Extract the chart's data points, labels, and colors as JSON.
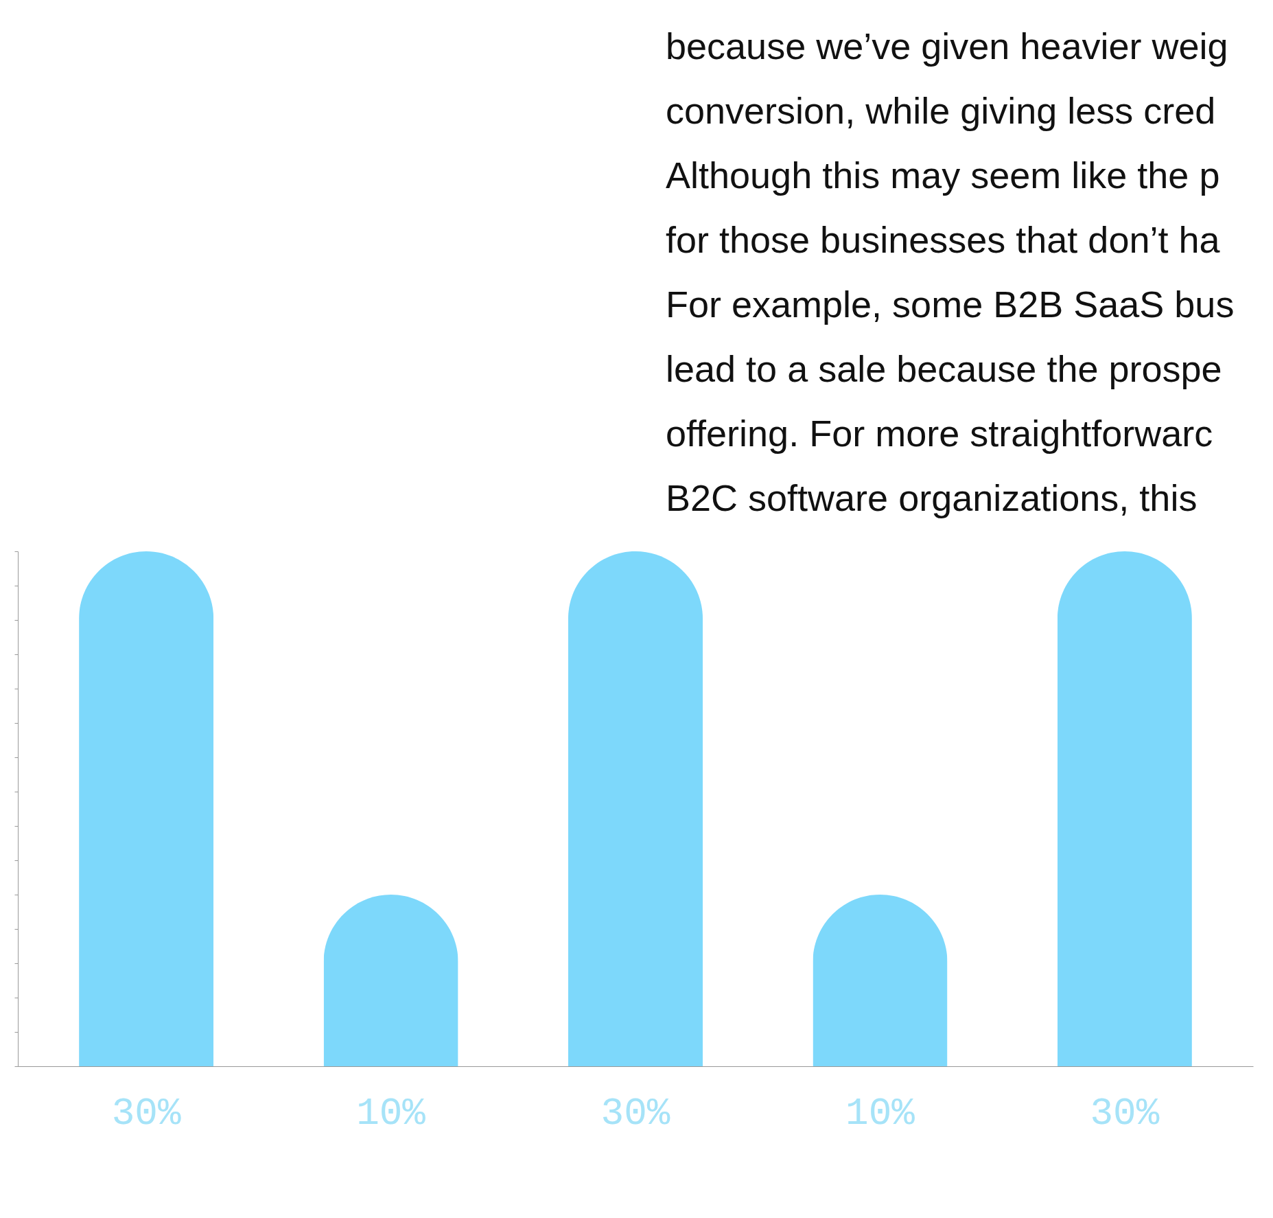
{
  "chart_data": {
    "type": "bar",
    "categories": [
      null,
      null,
      null,
      null,
      null
    ],
    "values": [
      30,
      10,
      30,
      10,
      30
    ],
    "value_labels": [
      "30%",
      "10%",
      "30%",
      "10%",
      "30%"
    ],
    "color": "#7dd8fb",
    "annotations": [
      "because we’ve given heavier weig",
      "conversion, while giving less cred",
      "Although this may seem like the p",
      "for those businesses that don’t ha",
      "For example, some B2B SaaS bus",
      "lead to a sale because the prospe",
      "offering. For more straightforwarc",
      "B2C software organizations, this"
    ]
  }
}
